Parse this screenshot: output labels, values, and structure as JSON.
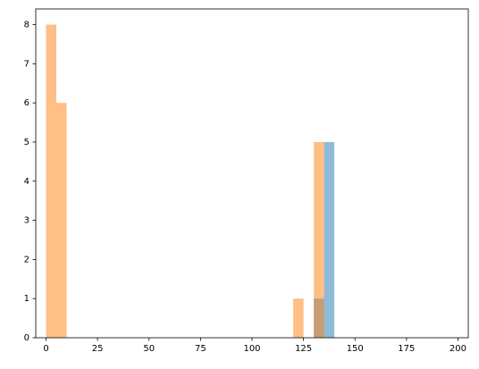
{
  "chart_data": {
    "type": "histogram",
    "bins": [
      0,
      5,
      10,
      15,
      20,
      25,
      30,
      35,
      40,
      45,
      50,
      55,
      60,
      65,
      70,
      75,
      80,
      85,
      90,
      95,
      100,
      105,
      110,
      115,
      120,
      125,
      130,
      135,
      140,
      145,
      150,
      155,
      160,
      165,
      170,
      175,
      180,
      185,
      190,
      195,
      200
    ],
    "series": [
      {
        "color": "#1f77b4",
        "values": [
          0,
          0,
          0,
          0,
          0,
          0,
          0,
          0,
          0,
          0,
          0,
          0,
          0,
          0,
          0,
          0,
          0,
          0,
          0,
          0,
          0,
          0,
          0,
          0,
          0,
          0,
          1,
          5,
          0,
          0,
          0,
          0,
          0,
          0,
          0,
          0,
          0,
          0,
          0,
          0
        ]
      },
      {
        "color": "#ff7f0e",
        "values": [
          8,
          6,
          0,
          0,
          0,
          0,
          0,
          0,
          0,
          0,
          0,
          0,
          0,
          0,
          0,
          0,
          0,
          0,
          0,
          0,
          0,
          0,
          0,
          0,
          1,
          0,
          5,
          0,
          0,
          0,
          0,
          0,
          0,
          0,
          0,
          0,
          0,
          0,
          0,
          0
        ]
      }
    ],
    "opacity": 0.5,
    "xlim": [
      -5,
      205
    ],
    "ylim": [
      0,
      8.4
    ],
    "xticks": [
      0,
      25,
      50,
      75,
      100,
      125,
      150,
      175,
      200
    ],
    "yticks": [
      0,
      1,
      2,
      3,
      4,
      5,
      6,
      7,
      8
    ]
  }
}
